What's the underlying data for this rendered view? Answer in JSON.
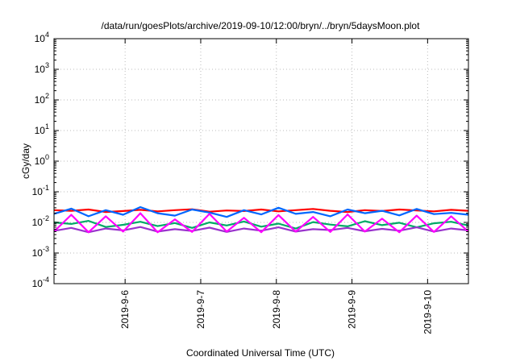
{
  "chart_data": {
    "type": "line",
    "title": "/data/run/goesPlots/archive/2019-09-10/12:00/bryn/../bryn/5daysMoon.plot",
    "xlabel": "Coordinated Universal Time (UTC)",
    "ylabel": "cGy/day",
    "yscale": "log",
    "ylim_exp": [
      -4,
      4
    ],
    "y_ticks": [
      {
        "base": "10",
        "exp": "-4"
      },
      {
        "base": "10",
        "exp": "-3"
      },
      {
        "base": "10",
        "exp": "-2"
      },
      {
        "base": "10",
        "exp": "-1"
      },
      {
        "base": "10",
        "exp": "0"
      },
      {
        "base": "10",
        "exp": "1"
      },
      {
        "base": "10",
        "exp": "2"
      },
      {
        "base": "10",
        "exp": "3"
      },
      {
        "base": "10",
        "exp": "4"
      }
    ],
    "x_range_days": [
      5.06,
      10.54
    ],
    "x_ticks": [
      {
        "label": "2019-9-6",
        "day": 6
      },
      {
        "label": "2019-9-7",
        "day": 7
      },
      {
        "label": "2019-9-8",
        "day": 8
      },
      {
        "label": "2019-9-9",
        "day": 9
      },
      {
        "label": "2019-9-10",
        "day": 10
      }
    ],
    "grid": true,
    "series": [
      {
        "color": "#ff0000",
        "values_log10": [
          -1.6,
          -1.62,
          -1.58,
          -1.66,
          -1.63,
          -1.59,
          -1.64,
          -1.6,
          -1.57,
          -1.65,
          -1.61,
          -1.63,
          -1.58,
          -1.64,
          -1.6,
          -1.56,
          -1.62,
          -1.66,
          -1.6,
          -1.63,
          -1.58,
          -1.61,
          -1.64,
          -1.59,
          -1.62
        ]
      },
      {
        "color": "#0066ff",
        "values_log10": [
          -1.72,
          -1.55,
          -1.8,
          -1.6,
          -1.75,
          -1.5,
          -1.7,
          -1.78,
          -1.58,
          -1.68,
          -1.82,
          -1.6,
          -1.74,
          -1.52,
          -1.72,
          -1.66,
          -1.8,
          -1.58,
          -1.7,
          -1.62,
          -1.77,
          -1.56,
          -1.73,
          -1.69,
          -1.75
        ]
      },
      {
        "color": "#00aa66",
        "values_log10": [
          -2.0,
          -2.05,
          -1.95,
          -2.15,
          -2.08,
          -1.98,
          -2.12,
          -2.02,
          -2.18,
          -2.0,
          -2.1,
          -1.97,
          -2.14,
          -2.04,
          -2.2,
          -1.99,
          -2.07,
          -2.13,
          -1.96,
          -2.09,
          -2.01,
          -2.16,
          -2.03,
          -1.98,
          -2.1
        ]
      },
      {
        "color": "#9933cc",
        "values_log10": [
          -2.28,
          -2.18,
          -2.32,
          -2.2,
          -2.26,
          -2.15,
          -2.3,
          -2.22,
          -2.28,
          -2.17,
          -2.31,
          -2.2,
          -2.27,
          -2.16,
          -2.3,
          -2.22,
          -2.25,
          -2.18,
          -2.29,
          -2.21,
          -2.27,
          -2.16,
          -2.3,
          -2.2,
          -2.26
        ]
      },
      {
        "color": "#ff00ff",
        "values_log10": [
          -2.3,
          -1.75,
          -2.32,
          -1.8,
          -2.3,
          -1.7,
          -2.32,
          -1.9,
          -2.31,
          -1.72,
          -2.3,
          -1.85,
          -2.32,
          -1.76,
          -2.3,
          -1.82,
          -2.31,
          -1.74,
          -2.3,
          -1.88,
          -2.32,
          -1.78,
          -2.31,
          -1.8,
          -2.3
        ]
      }
    ]
  }
}
